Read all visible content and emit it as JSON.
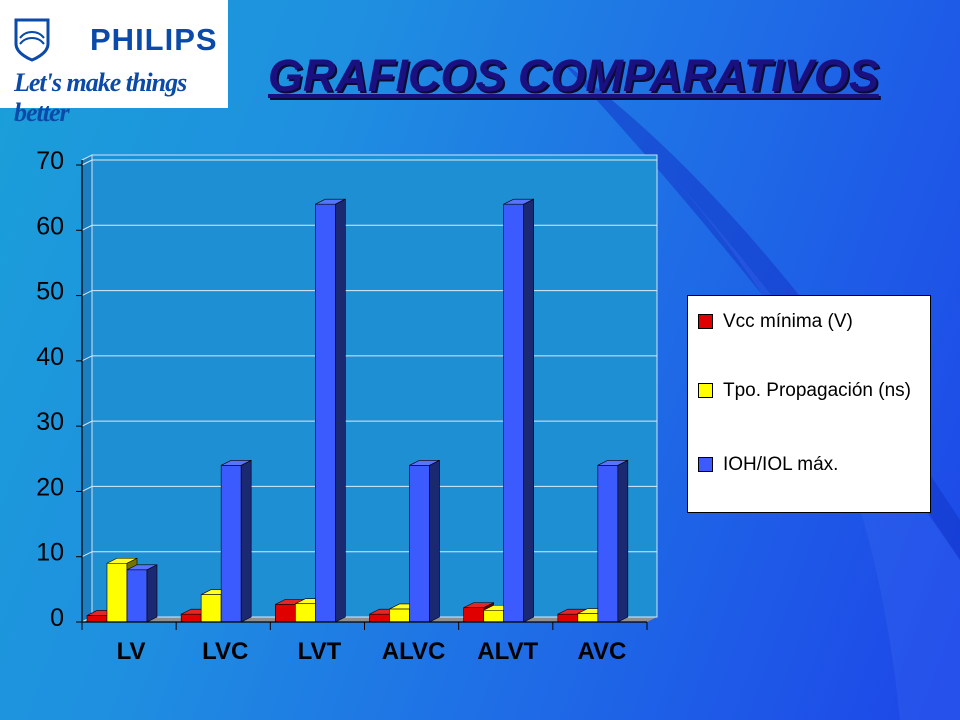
{
  "brand": {
    "wordmark": "PHILIPS",
    "tagline": "Let's make things better"
  },
  "title": "GRAFICOS COMPARATIVOS",
  "chart_data": {
    "type": "bar",
    "categories": [
      "LV",
      "LVC",
      "LVT",
      "ALVC",
      "ALVT",
      "AVC"
    ],
    "series": [
      {
        "name": "Vcc mínima (V)",
        "color": "#e00000",
        "values": [
          1,
          1.2,
          2.7,
          1.2,
          2.2,
          1.2
        ]
      },
      {
        "name": "Tpo. Propagación (ns)",
        "color": "#ffff00",
        "values": [
          9,
          4.2,
          2.8,
          2.0,
          1.8,
          1.3
        ]
      },
      {
        "name": "IOH/IOL máx.",
        "color": "#3b5bff",
        "values": [
          8,
          24,
          64,
          24,
          64,
          24
        ]
      }
    ],
    "ylim": [
      0,
      70
    ],
    "yticks": [
      "0",
      "10",
      "20",
      "30",
      "40",
      "50",
      "60",
      "70"
    ],
    "grid": true,
    "legend_position": "right",
    "style": "3d"
  }
}
